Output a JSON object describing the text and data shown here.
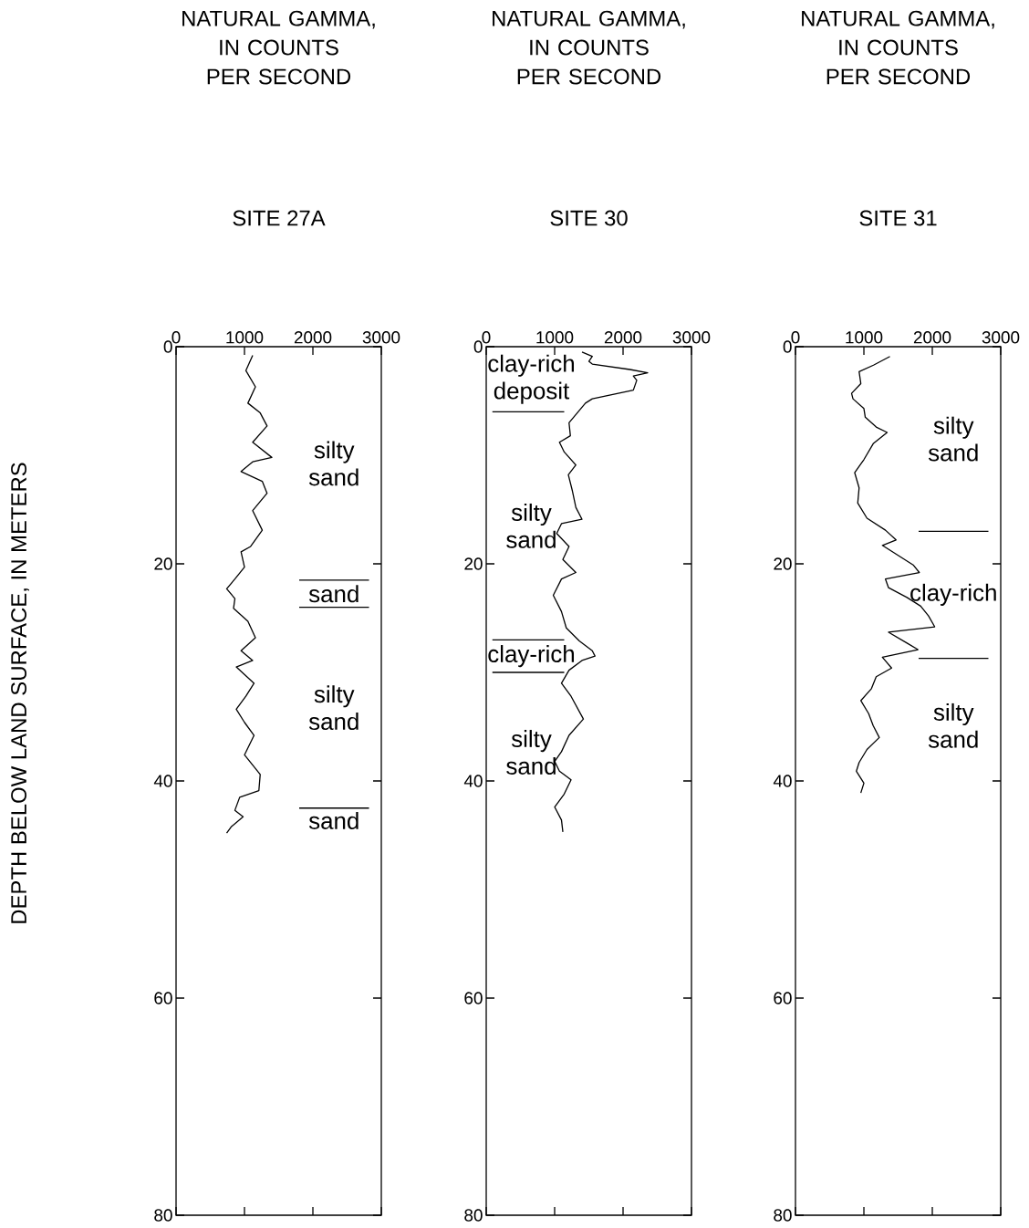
{
  "chart_data": [
    {
      "type": "line",
      "xlabel": "NATURAL GAMMA, IN COUNTS PER SECOND",
      "title": "SITE 27A",
      "ylabel": "DEPTH BELOW LAND SURFACE, IN METERS",
      "xlim": [
        0,
        3000
      ],
      "xticks": [
        0,
        1000,
        2000,
        3000
      ],
      "ylim": [
        80,
        0
      ],
      "yticks": [
        0,
        20,
        40,
        60,
        80
      ],
      "series": [
        {
          "color": "#000000",
          "x": [
            1120,
            1020,
            1160,
            1050,
            1230,
            1330,
            1120,
            1400,
            1120,
            950,
            1260,
            1330,
            1120,
            1260,
            1090,
            950,
            1000,
            860,
            740,
            860,
            840,
            1050,
            1160,
            950,
            1120,
            880,
            1140,
            1020,
            880,
            1000,
            1140,
            1000,
            1230,
            1210,
            930,
            860,
            980,
            810,
            740
          ],
          "values": [
            0.8,
            2.2,
            3.7,
            5.2,
            6.1,
            7.3,
            8.8,
            10.2,
            10.6,
            11.5,
            12.4,
            13.5,
            15.1,
            16.9,
            18.4,
            18.9,
            20.3,
            21.4,
            22.3,
            23.2,
            24.1,
            25.3,
            26.8,
            28.0,
            28.9,
            29.5,
            31.0,
            32.2,
            33.4,
            34.6,
            35.8,
            37.6,
            39.4,
            40.9,
            41.5,
            42.7,
            43.3,
            44.2,
            44.8
          ]
        }
      ],
      "ref_lines": [
        {
          "axis": "y",
          "value": 21.5
        },
        {
          "axis": "y",
          "value": 24
        },
        {
          "axis": "y",
          "value": 42.5
        }
      ],
      "annotations": [
        "silty sand",
        "sand",
        "silty sand",
        "sand"
      ]
    },
    {
      "type": "line",
      "xlabel": "NATURAL GAMMA, IN COUNTS PER SECOND",
      "title": "SITE 30",
      "xlim": [
        0,
        3000
      ],
      "xticks": [
        0,
        1000,
        2000,
        3000
      ],
      "ylim": [
        80,
        0
      ],
      "yticks": [
        0,
        20,
        40,
        60,
        80
      ],
      "series": [
        {
          "color": "#000000",
          "x": [
            1400,
            1550,
            1500,
            1550,
            2100,
            2360,
            2150,
            2200,
            2150,
            1550,
            1450,
            1330,
            1210,
            1230,
            1070,
            1140,
            1310,
            1200,
            1260,
            1310,
            1400,
            1100,
            1030,
            1210,
            1120,
            1310,
            1100,
            980,
            1100,
            1170,
            1360,
            1550,
            1590,
            1400,
            1210,
            1100,
            1240,
            1420,
            1210,
            1100,
            1000,
            1070,
            1240,
            1140,
            1000,
            1100,
            1120
          ],
          "values": [
            0.5,
            0.9,
            1.35,
            1.6,
            2.1,
            2.4,
            2.7,
            3.1,
            4.0,
            4.8,
            5.2,
            6.1,
            7.0,
            8.2,
            8.8,
            9.7,
            10.9,
            11.8,
            13.3,
            14.8,
            15.9,
            16.3,
            17.2,
            18.4,
            19.6,
            20.8,
            21.4,
            22.9,
            24.4,
            25.9,
            27.1,
            28.0,
            28.5,
            28.9,
            29.8,
            31.0,
            32.2,
            34.3,
            35.8,
            37.3,
            38.2,
            39.1,
            39.9,
            41.2,
            42.4,
            43.6,
            44.7
          ]
        }
      ],
      "ref_lines": [
        {
          "axis": "y",
          "value": 6
        },
        {
          "axis": "y",
          "value": 27
        },
        {
          "axis": "y",
          "value": 30
        }
      ],
      "annotations": [
        "clay-rich deposit",
        "silty sand",
        "clay-rich",
        "silty sand"
      ]
    },
    {
      "type": "line",
      "xlabel": "NATURAL GAMMA, IN COUNTS PER SECOND",
      "title": "SITE 31",
      "xlim": [
        0,
        3000
      ],
      "xticks": [
        0,
        1000,
        2000,
        3000
      ],
      "ylim": [
        80,
        0
      ],
      "yticks": [
        0,
        20,
        40,
        60,
        80
      ],
      "series": [
        {
          "color": "#000000",
          "x": [
            1380,
            1140,
            930,
            955,
            820,
            840,
            1000,
            1020,
            1180,
            1340,
            1140,
            1000,
            865,
            930,
            910,
            1045,
            1315,
            1470,
            1270,
            1495,
            1720,
            1810,
            1315,
            1360,
            1630,
            1830,
            1945,
            2035,
            1360,
            1630,
            1790,
            1270,
            1405,
            1180,
            1110,
            955,
            1070,
            1135,
            1225,
            1045,
            930,
            890,
            1000,
            955
          ],
          "values": [
            0.9,
            1.7,
            2.3,
            3.4,
            4.3,
            4.8,
            5.7,
            6.5,
            7.4,
            7.9,
            8.9,
            10.4,
            11.6,
            13.0,
            14.4,
            15.8,
            16.9,
            17.8,
            18.3,
            19.2,
            20.1,
            20.8,
            21.4,
            22.2,
            23.1,
            23.9,
            24.8,
            25.8,
            26.3,
            27.3,
            27.9,
            28.6,
            29.6,
            30.4,
            31.5,
            32.6,
            33.8,
            34.9,
            36.0,
            37.1,
            38.3,
            39.1,
            40.2,
            41.1
          ]
        }
      ],
      "ref_lines": [
        {
          "axis": "y",
          "value": 17
        },
        {
          "axis": "y",
          "value": 28.7
        }
      ],
      "annotations": [
        "silty sand",
        "clay-rich",
        "silty sand"
      ]
    }
  ]
}
